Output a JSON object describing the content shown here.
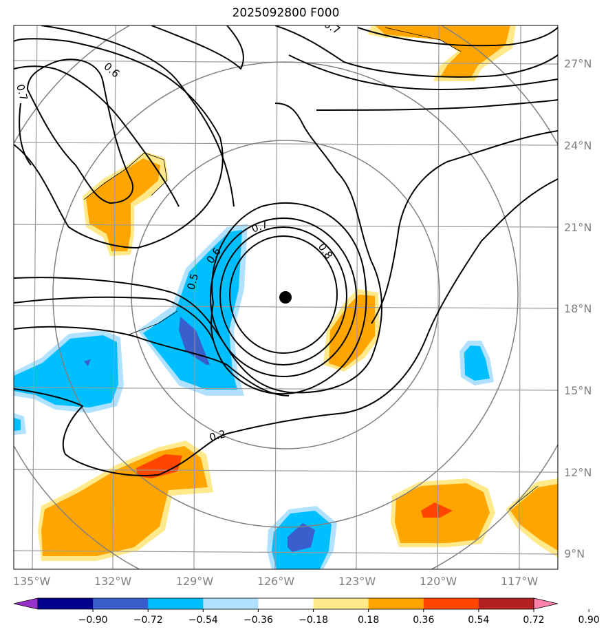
{
  "title": "2025092800 F000",
  "lon_labels": [
    "135°W",
    "132°W",
    "129°W",
    "126°W",
    "123°W",
    "120°W",
    "117°W"
  ],
  "lat_labels": [
    "27°N",
    "24°N",
    "21°N",
    "18°N",
    "15°N",
    "12°N",
    "9°N"
  ],
  "contour_labels": [
    "0.7",
    "0.6",
    "0.5",
    "0.6",
    "0.7",
    "0.8",
    "0.2",
    "0.7"
  ],
  "colorbar": {
    "colors": [
      "#9932cc",
      "#00008b",
      "#3a5fcd",
      "#00bfff",
      "#b0e2ff",
      "#ffffff",
      "#ffe98a",
      "#ffa500",
      "#ff4500",
      "#b22222",
      "#ff82ab"
    ],
    "ticks": [
      "−0.90",
      "−0.72",
      "−0.54",
      "−0.36",
      "−0.18",
      "0.18",
      "0.36",
      "0.54",
      "0.72",
      "0.90"
    ]
  },
  "center_marker": "storm-center-dot"
}
